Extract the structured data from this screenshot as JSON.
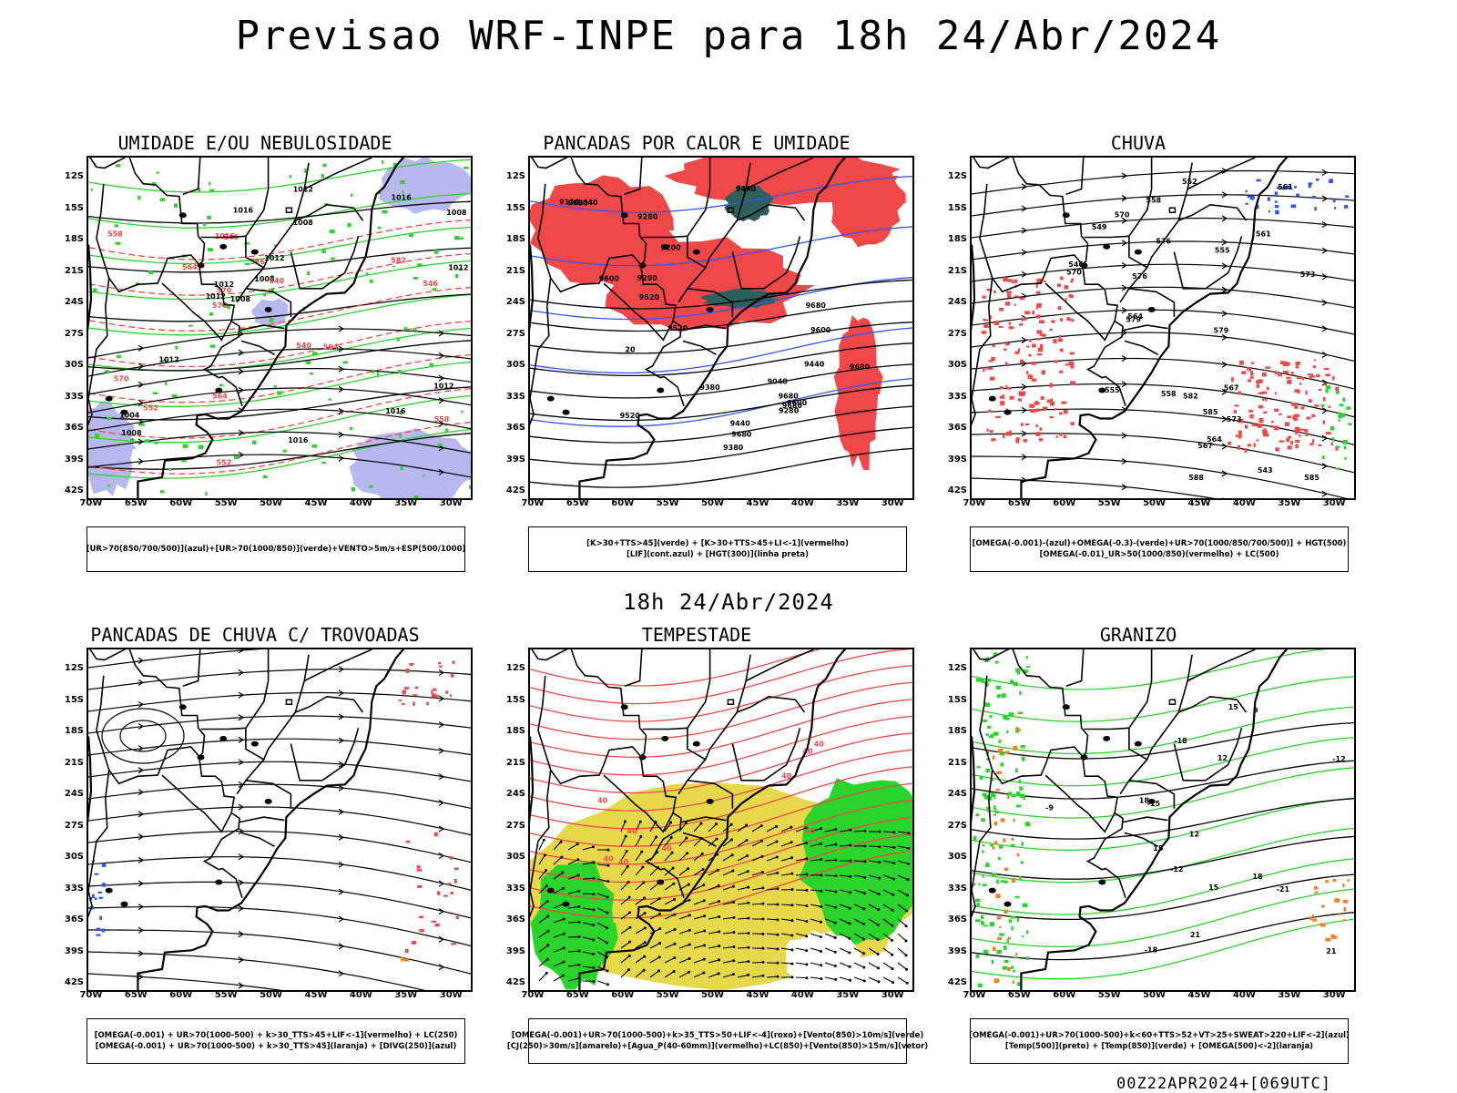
{
  "main_title": "Previsao WRF-INPE  para 18h 24/Abr/2024",
  "mid_title": "18h 24/Abr/2024",
  "footer": "00Z22APR2024+[069UTC]",
  "lat_labels": [
    "12S",
    "15S",
    "18S",
    "21S",
    "24S",
    "27S",
    "30S",
    "33S",
    "36S",
    "39S",
    "42S"
  ],
  "lon_labels": [
    "70W",
    "65W",
    "60W",
    "55W",
    "50W",
    "45W",
    "40W",
    "35W",
    "30W"
  ],
  "colors": {
    "contour_black": "#000000",
    "green": "#2bd42b",
    "red": "#f04848",
    "blue": "#3355ee",
    "lavender": "#b8b8f0",
    "dark_teal": "#2f5f5a",
    "yellow": "#e6d84a",
    "bright_green": "#22cc22",
    "orange": "#f08020"
  },
  "panels": [
    {
      "title": "UMIDADE E/OU NEBULOSIDADE",
      "legend": [
        "[UR>70(850/700/500)](azul)+[UR>70(1000/850)](verde)+VENTO>5m/s+ESP(500/1000)"
      ],
      "contour_labels": [
        "1008",
        "1008",
        "1012",
        "1012",
        "1012",
        "1012",
        "1016",
        "1016",
        "1012",
        "1008",
        "1008",
        "1016",
        "1012",
        "1016",
        "1012",
        "1008",
        "1004",
        "1016",
        "576",
        "570",
        "564",
        "558",
        "552",
        "546",
        "540",
        "564",
        "558",
        "552",
        "546",
        "540",
        "582",
        "576",
        "564",
        "570"
      ]
    },
    {
      "title": "PANCADAS POR CALOR E UMIDADE",
      "legend": [
        "[K>30+TTS>45](verde) + [K>30+TTS>45+LI<-1](vermelho)",
        "[LIF](cont.azul) + [HGT(300)](linha preta)"
      ],
      "contour_labels": [
        "9680",
        "9680",
        "9680",
        "9680",
        "9680",
        "9640",
        "9600",
        "9600",
        "9520",
        "9440",
        "9520",
        "9440",
        "9380",
        "9280",
        "9200",
        "9120",
        "9040",
        "9440",
        "9380",
        "9280",
        "9200",
        "9680",
        "9600",
        "9520",
        "20"
      ]
    },
    {
      "title": "CHUVA",
      "legend": [
        "[OMEGA(-0.001)-(azul)+OMEGA(-0.3)-(verde)+UR>70(1000/850/700/500)] + HGT(500)",
        "[OMEGA(-0.01)_UR>50(1000/850)(vermelho) + LC(500)"
      ],
      "contour_labels": [
        "588",
        "585",
        "582",
        "579",
        "576",
        "573",
        "570",
        "567",
        "564",
        "561",
        "558",
        "555",
        "552",
        "549",
        "546",
        "543",
        "579",
        "576",
        "573",
        "570",
        "567",
        "564",
        "561",
        "558",
        "555",
        "585"
      ]
    },
    {
      "title": "PANCADAS DE CHUVA C/ TROVOADAS",
      "legend": [
        "[OMEGA(-0.001) + UR>70(1000-500) + k>30_TTS>45+LIF<-1](vermelho) + LC(250)",
        "[OMEGA(-0.001) + UR>70(1000-500) + k>30_TTS>45](laranja) + [DIVG(250)](azul)"
      ],
      "contour_labels": []
    },
    {
      "title": "TEMPESTADE",
      "legend": [
        "[OMEGA(-0.001)+UR>70(1000-500)+k>35_TTS>50+LIF<-4](roxo)+[Vento(850)>10m/s](verde)",
        "[CJ(250)>30m/s](amarelo)+[Agua_P(40-60mm)](vermelho)+LC(850)+[Vento(850)>15m/s](vetor)"
      ],
      "contour_labels": [
        "40",
        "40",
        "40",
        "40",
        "40",
        "40",
        "40",
        "40",
        "40"
      ]
    },
    {
      "title": "GRANIZO",
      "legend": [
        "[OMEGA(-0.001)+UR>70(1000-500)+k<60+TTS>52+VT>25+SWEAT>220+LIF<-2](azul)",
        "[Temp(500)](preto) + [Temp(850)](verde) + [OMEGA(500)<-2](laranja)"
      ],
      "contour_labels": [
        "-9",
        "-12",
        "-15",
        "-18",
        "-21",
        "-18",
        "-12",
        "15",
        "18",
        "21",
        "12",
        "15",
        "18",
        "21",
        "12",
        "15",
        "9"
      ]
    }
  ]
}
